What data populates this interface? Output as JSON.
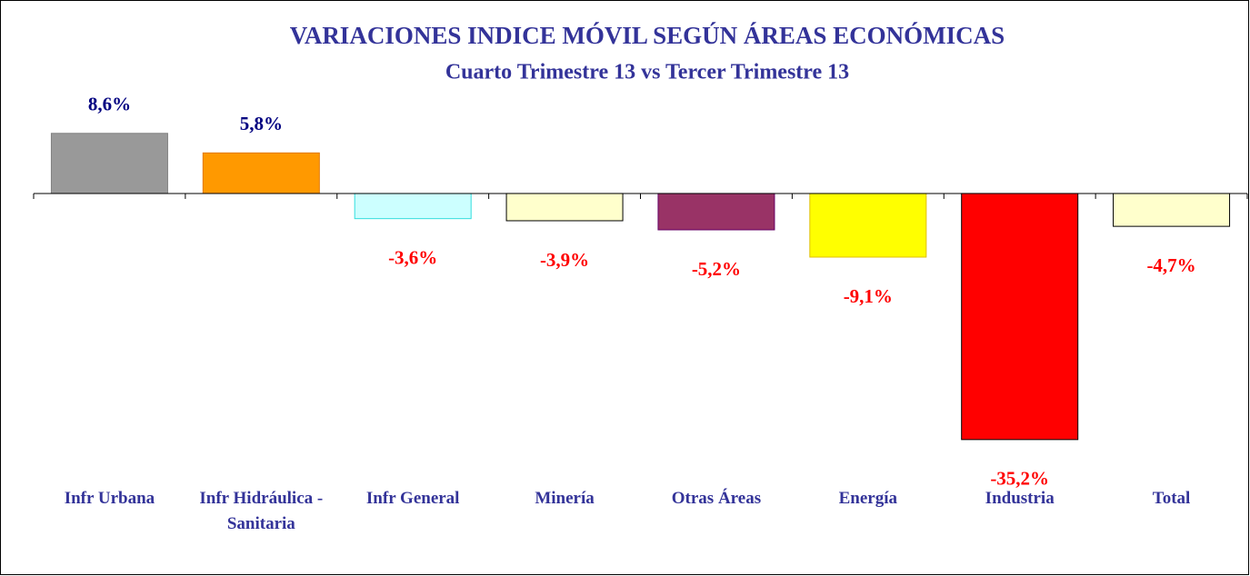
{
  "chart_data": {
    "type": "bar",
    "title": "VARIACIONES INDICE MÓVIL SEGÚN ÁREAS ECONÓMICAS",
    "subtitle": "Cuarto Trimestre 13 vs Tercer Trimestre 13",
    "categories": [
      "Infr Urbana",
      "Infr Hidráulica - Sanitaria",
      "Infr General",
      "Minería",
      "Otras Áreas",
      "Energía",
      "Industria",
      "Total"
    ],
    "values": [
      8.6,
      5.8,
      -3.6,
      -3.9,
      -5.2,
      -9.1,
      -35.2,
      -4.7
    ],
    "value_labels": [
      "8,6%",
      "5,8%",
      "-3,6%",
      "-3,9%",
      "-5,2%",
      "-9,1%",
      "-35,2%",
      "-4,7%"
    ],
    "colors": [
      "#999999",
      "#ff9900",
      "#ccffff",
      "#ffffcc",
      "#993366",
      "#ffff00",
      "#ff0000",
      "#ffffcc"
    ],
    "ylim": [
      -36,
      10
    ]
  }
}
